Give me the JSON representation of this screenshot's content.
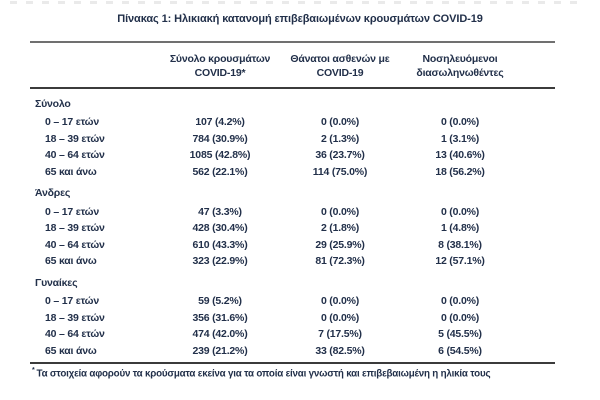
{
  "title": "Πίνακας 1: Ηλικιακή κατανομή επιβεβαιωμένων κρουσμάτων COVID-19",
  "colors": {
    "text": "#22304a",
    "rule_top": "#707070",
    "rule_dark": "#3b3b3b",
    "background": "#ffffff"
  },
  "table": {
    "headers": [
      {
        "line1": "Σύνολο κρουσμάτων",
        "line2": "COVID-19*"
      },
      {
        "line1": "Θάνατοι ασθενών με",
        "line2": "COVID-19"
      },
      {
        "line1": "Νοσηλευόμενοι",
        "line2": "διασωληνωθέντες"
      }
    ],
    "sections": [
      {
        "label": "Σύνολο",
        "rows": [
          {
            "label": "0 – 17 ετών",
            "cases": "107 (4.2%)",
            "deaths": "0 (0.0%)",
            "intubated": "0 (0.0%)"
          },
          {
            "label": "18 – 39 ετών",
            "cases": "784 (30.9%)",
            "deaths": "2 (1.3%)",
            "intubated": "1 (3.1%)"
          },
          {
            "label": "40 – 64 ετών",
            "cases": "1085 (42.8%)",
            "deaths": "36 (23.7%)",
            "intubated": "13 (40.6%)"
          },
          {
            "label": "65 και άνω",
            "cases": "562 (22.1%)",
            "deaths": "114 (75.0%)",
            "intubated": "18 (56.2%)"
          }
        ]
      },
      {
        "label": "Άνδρες",
        "rows": [
          {
            "label": "0 – 17 ετών",
            "cases": "47 (3.3%)",
            "deaths": "0 (0.0%)",
            "intubated": "0 (0.0%)"
          },
          {
            "label": "18 – 39 ετών",
            "cases": "428 (30.4%)",
            "deaths": "2 (1.8%)",
            "intubated": "1 (4.8%)"
          },
          {
            "label": "40 – 64 ετών",
            "cases": "610 (43.3%)",
            "deaths": "29 (25.9%)",
            "intubated": "8 (38.1%)"
          },
          {
            "label": "65 και άνω",
            "cases": "323 (22.9%)",
            "deaths": "81 (72.3%)",
            "intubated": "12 (57.1%)"
          }
        ]
      },
      {
        "label": "Γυναίκες",
        "rows": [
          {
            "label": "0 – 17 ετών",
            "cases": "59 (5.2%)",
            "deaths": "0 (0.0%)",
            "intubated": "0 (0.0%)"
          },
          {
            "label": "18 – 39 ετών",
            "cases": "356 (31.6%)",
            "deaths": "0 (0.0%)",
            "intubated": "0 (0.0%)"
          },
          {
            "label": "40 – 64 ετών",
            "cases": "474 (42.0%)",
            "deaths": "7 (17.5%)",
            "intubated": "5 (45.5%)"
          },
          {
            "label": "65 και άνω",
            "cases": "239 (21.2%)",
            "deaths": "33 (82.5%)",
            "intubated": "6 (54.5%)"
          }
        ]
      }
    ],
    "footnote_marker": "*",
    "footnote": "Τα στοιχεία αφορούν τα κρούσματα εκείνα για τα οποία είναι γνωστή και επιβεβαιωμένη η ηλικία τους"
  }
}
